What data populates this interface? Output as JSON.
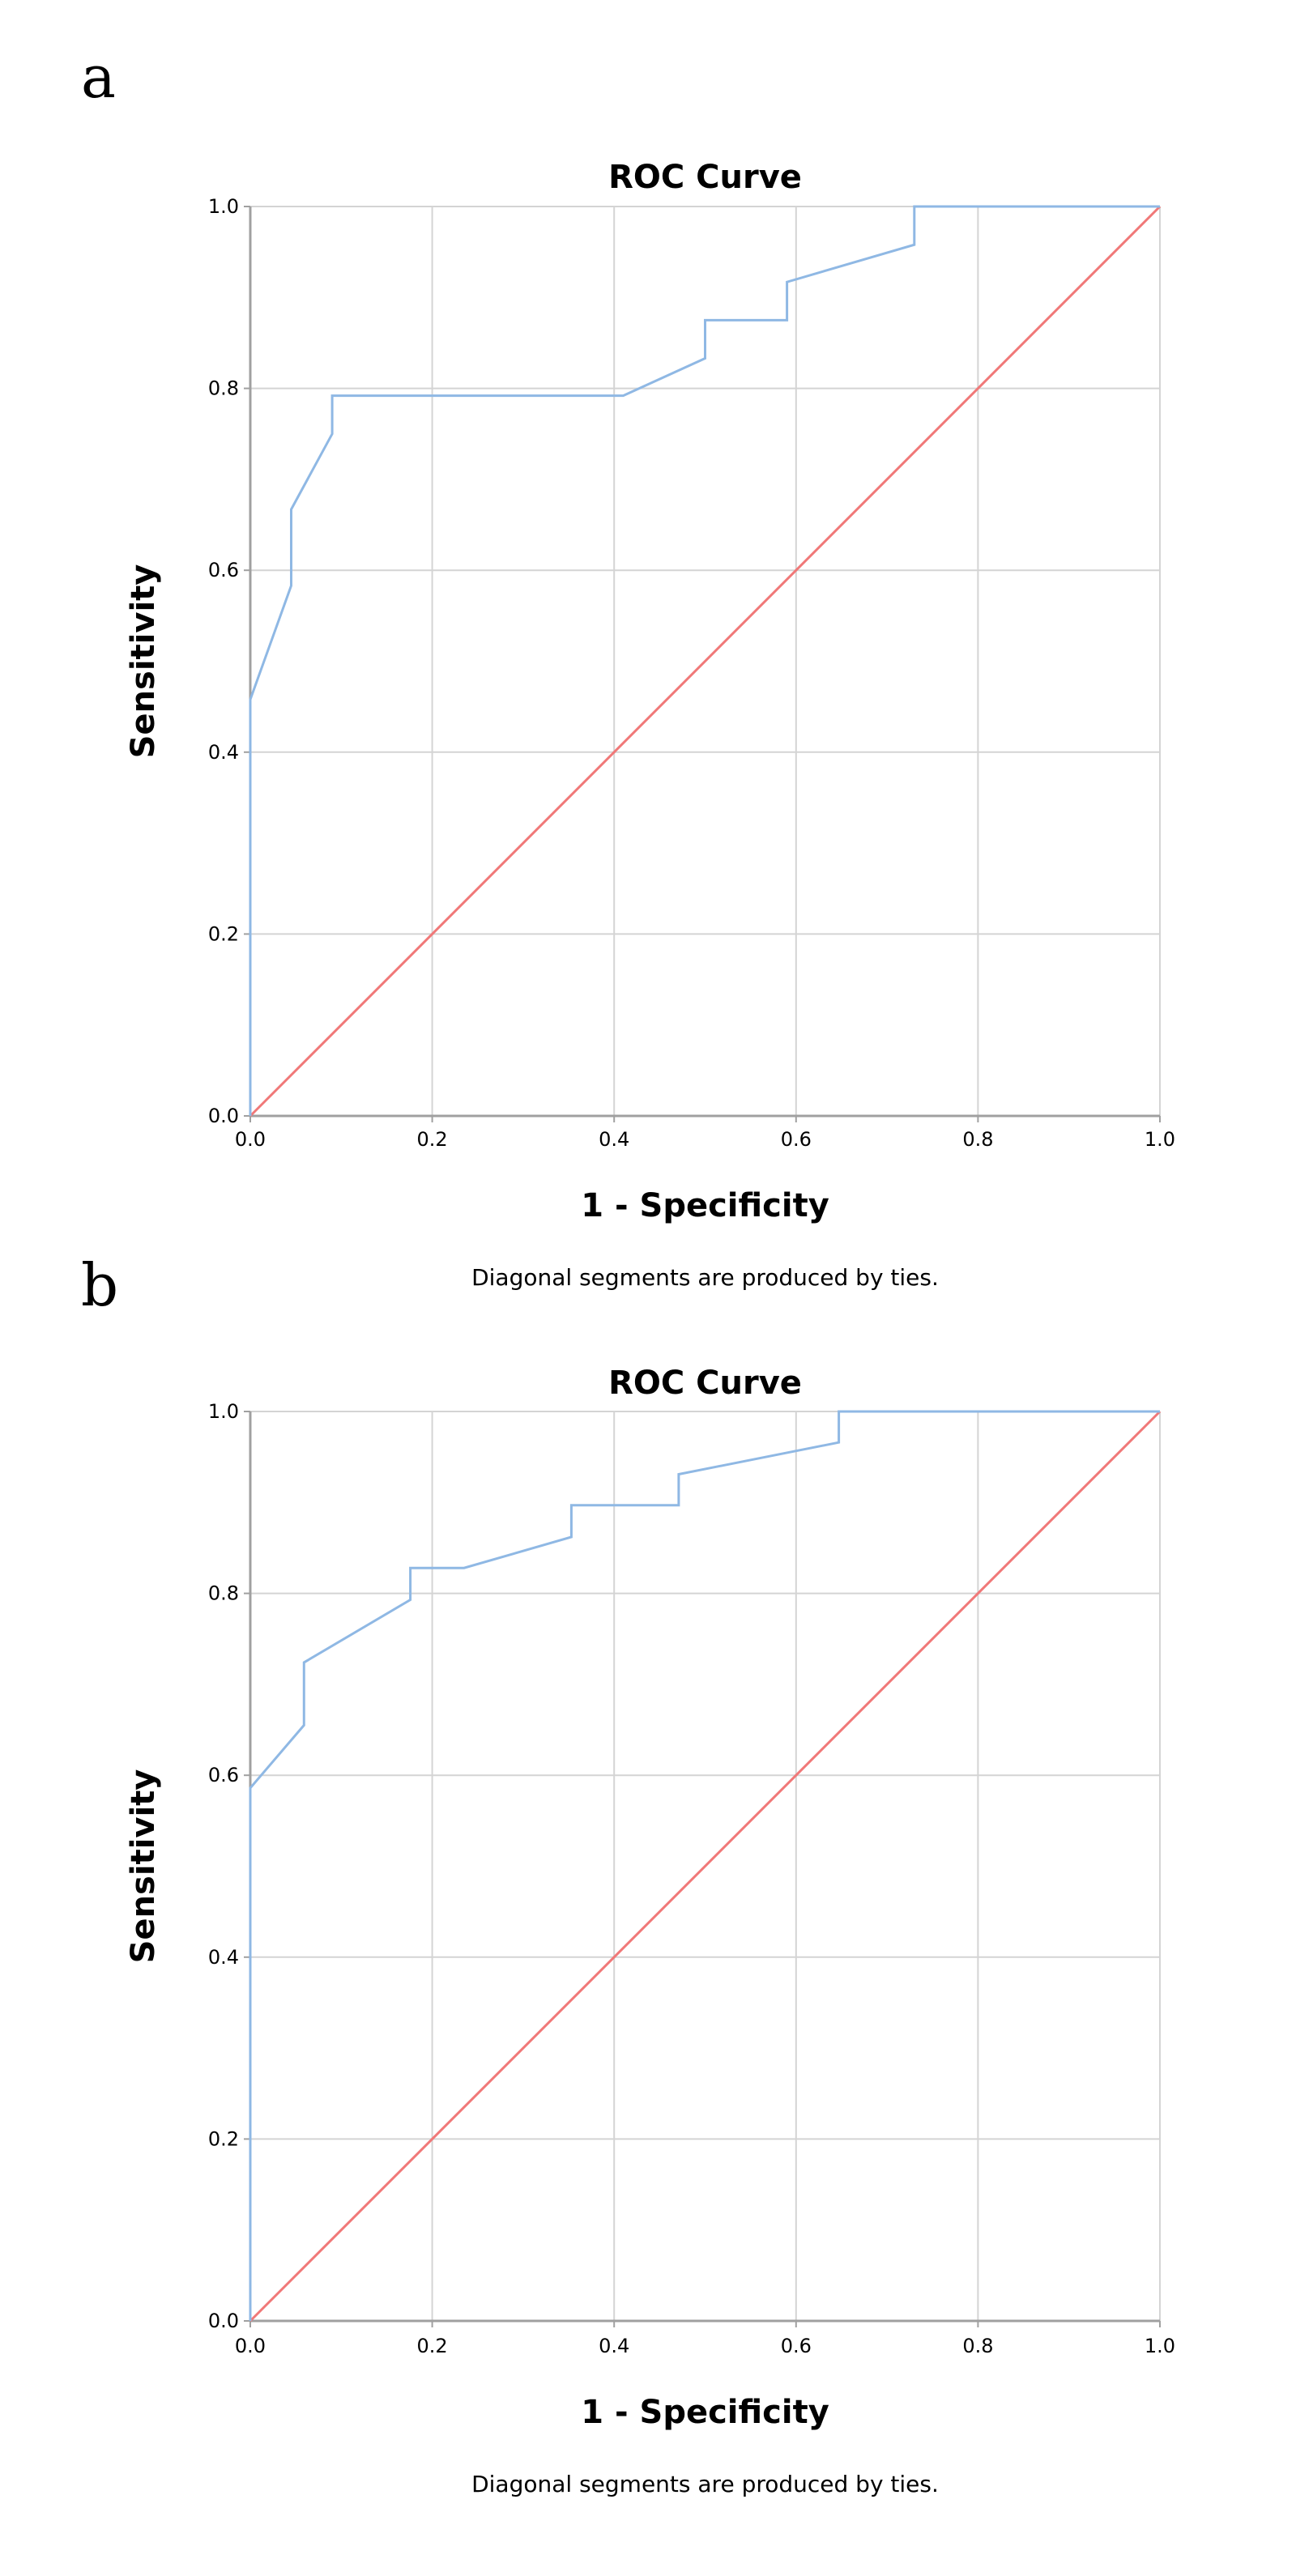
{
  "chart_data": [
    {
      "panel_label": "a",
      "type": "line",
      "title": "ROC Curve",
      "xlabel": "1 - Specificity",
      "ylabel": "Sensitivity",
      "xlim": [
        0,
        1
      ],
      "ylim": [
        0,
        1
      ],
      "grid": true,
      "xticks": [
        "0.0",
        "0.2",
        "0.4",
        "0.6",
        "0.8",
        "1.0"
      ],
      "yticks": [
        "0.0",
        "0.2",
        "0.4",
        "0.6",
        "0.8",
        "1.0"
      ],
      "footnote": "Diagonal segments are produced by ties.",
      "series": [
        {
          "name": "ROC",
          "color": "#8fb8e4",
          "x": [
            0.0,
            0.0,
            0.045,
            0.045,
            0.09,
            0.09,
            0.41,
            0.5,
            0.5,
            0.59,
            0.59,
            0.73,
            0.73,
            1.0
          ],
          "y": [
            0.0,
            0.458,
            0.583,
            0.667,
            0.75,
            0.792,
            0.792,
            0.833,
            0.875,
            0.875,
            0.917,
            0.958,
            1.0,
            1.0
          ]
        },
        {
          "name": "Reference Line",
          "color": "#f07878",
          "x": [
            0.0,
            1.0
          ],
          "y": [
            0.0,
            1.0
          ]
        }
      ]
    },
    {
      "panel_label": "b",
      "type": "line",
      "title": "ROC Curve",
      "xlabel": "1 - Specificity",
      "ylabel": "Sensitivity",
      "xlim": [
        0,
        1
      ],
      "ylim": [
        0,
        1
      ],
      "grid": true,
      "xticks": [
        "0.0",
        "0.2",
        "0.4",
        "0.6",
        "0.8",
        "1.0"
      ],
      "yticks": [
        "0.0",
        "0.2",
        "0.4",
        "0.6",
        "0.8",
        "1.0"
      ],
      "footnote": "Diagonal segments are produced by ties.",
      "series": [
        {
          "name": "ROC",
          "color": "#8fb8e4",
          "x": [
            0.0,
            0.0,
            0.059,
            0.059,
            0.176,
            0.176,
            0.235,
            0.353,
            0.353,
            0.471,
            0.471,
            0.647,
            0.647,
            1.0
          ],
          "y": [
            0.0,
            0.586,
            0.655,
            0.724,
            0.793,
            0.828,
            0.828,
            0.862,
            0.897,
            0.897,
            0.931,
            0.966,
            1.0,
            1.0
          ]
        },
        {
          "name": "Reference Line",
          "color": "#f07878",
          "x": [
            0.0,
            1.0
          ],
          "y": [
            0.0,
            1.0
          ]
        }
      ]
    }
  ]
}
